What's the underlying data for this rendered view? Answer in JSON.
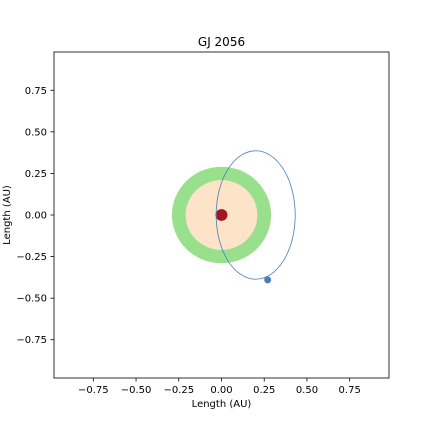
{
  "chart_data": {
    "type": "scatter",
    "title": "GJ 2056",
    "xlabel": "Length (AU)",
    "ylabel": "Length (AU)",
    "xlim": [
      -0.98,
      0.98
    ],
    "ylim": [
      -0.98,
      0.98
    ],
    "grid": false,
    "xticks": [
      -0.75,
      -0.5,
      -0.25,
      0.0,
      0.25,
      0.5,
      0.75
    ],
    "yticks": [
      -0.75,
      -0.5,
      -0.25,
      0.0,
      0.25,
      0.5,
      0.75
    ],
    "xtick_labels": [
      "−0.75",
      "−0.50",
      "−0.25",
      "0.00",
      "0.25",
      "0.50",
      "0.75"
    ],
    "ytick_labels": [
      "−0.75",
      "−0.50",
      "−0.25",
      "0.00",
      "0.25",
      "0.50",
      "0.75"
    ],
    "habitable_zone": {
      "inner_radius_au": 0.21,
      "outer_radius_au": 0.29,
      "color": "#98e08c"
    },
    "inner_zone": {
      "radius_au": 0.21,
      "color": "#fde3c7"
    },
    "star": {
      "x": 0.0,
      "y": 0.0,
      "radius_au": 0.035,
      "color": "#a3161e"
    },
    "orbit": {
      "center_x": 0.2,
      "center_y": 0.0,
      "semi_major_au": 0.23,
      "semi_minor_au": 0.39,
      "color": "#4a7fb5"
    },
    "planet": {
      "x": 0.27,
      "y": -0.39,
      "color": "#4a7fb5"
    }
  }
}
